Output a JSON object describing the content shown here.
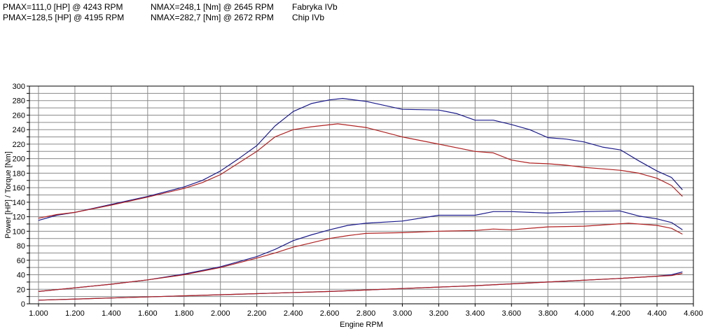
{
  "header": {
    "rows": [
      {
        "pmax": "PMAX=111,0 [HP] @ 4243 RPM",
        "nmax": "NMAX=248,1 [Nm] @ 2645 RPM",
        "name": "Fabryka IVb"
      },
      {
        "pmax": "PMAX=128,5 [HP] @ 4195 RPM",
        "nmax": "NMAX=282,7 [Nm] @ 2672 RPM",
        "name": "Chip IVb"
      }
    ]
  },
  "chart_data": {
    "type": "line",
    "xlabel": "Engine RPM",
    "ylabel": "Power [HP] / Torque [Nm]",
    "xlim": [
      950,
      4600
    ],
    "ylim": [
      0,
      300
    ],
    "x_ticks": [
      1000,
      1200,
      1400,
      1600,
      1800,
      2000,
      2200,
      2400,
      2600,
      2800,
      3000,
      3200,
      3400,
      3600,
      3800,
      4000,
      4200,
      4400,
      4600
    ],
    "x_tick_labels": [
      "1.000",
      "1.200",
      "1.400",
      "1.600",
      "1.800",
      "2.000",
      "2.200",
      "2.400",
      "2.600",
      "2.800",
      "3.000",
      "3.200",
      "3.400",
      "3.600",
      "3.800",
      "4.000",
      "4.200",
      "4.400",
      "4.600"
    ],
    "y_ticks": [
      0,
      10,
      20,
      30,
      40,
      50,
      60,
      70,
      80,
      90,
      100,
      110,
      120,
      130,
      140,
      150,
      160,
      170,
      180,
      190,
      200,
      210,
      220,
      230,
      240,
      250,
      260,
      270,
      280,
      290,
      300
    ],
    "y_tick_labels": [
      "0",
      "",
      "20",
      "",
      "40",
      "",
      "60",
      "",
      "80",
      "",
      "100",
      "",
      "120",
      "",
      "140",
      "",
      "160",
      "",
      "180",
      "",
      "200",
      "",
      "220",
      "",
      "240",
      "",
      "260",
      "",
      "280",
      "",
      "300"
    ],
    "grid": true,
    "series": [
      {
        "color": "#1a1a8c",
        "points": [
          [
            1000,
            115
          ],
          [
            1100,
            122
          ],
          [
            1200,
            126
          ],
          [
            1400,
            137
          ],
          [
            1600,
            148
          ],
          [
            1800,
            161
          ],
          [
            1900,
            170
          ],
          [
            2000,
            183
          ],
          [
            2100,
            200
          ],
          [
            2200,
            218
          ],
          [
            2300,
            245
          ],
          [
            2400,
            265
          ],
          [
            2500,
            276
          ],
          [
            2600,
            281
          ],
          [
            2672,
            283
          ],
          [
            2800,
            279
          ],
          [
            3000,
            268
          ],
          [
            3200,
            267
          ],
          [
            3300,
            262
          ],
          [
            3400,
            253
          ],
          [
            3500,
            253
          ],
          [
            3600,
            247
          ],
          [
            3700,
            240
          ],
          [
            3800,
            229
          ],
          [
            3900,
            227
          ],
          [
            4000,
            223
          ],
          [
            4100,
            216
          ],
          [
            4200,
            212
          ],
          [
            4300,
            197
          ],
          [
            4400,
            183
          ],
          [
            4480,
            174
          ],
          [
            4540,
            157
          ]
        ]
      },
      {
        "color": "#b02020",
        "points": [
          [
            1000,
            118
          ],
          [
            1100,
            123
          ],
          [
            1200,
            126
          ],
          [
            1400,
            136
          ],
          [
            1600,
            147
          ],
          [
            1800,
            159
          ],
          [
            1900,
            167
          ],
          [
            2000,
            178
          ],
          [
            2100,
            194
          ],
          [
            2200,
            210
          ],
          [
            2300,
            230
          ],
          [
            2400,
            240
          ],
          [
            2500,
            244
          ],
          [
            2645,
            248
          ],
          [
            2800,
            243
          ],
          [
            3000,
            230
          ],
          [
            3200,
            220
          ],
          [
            3400,
            210
          ],
          [
            3500,
            208
          ],
          [
            3600,
            198
          ],
          [
            3700,
            194
          ],
          [
            3800,
            193
          ],
          [
            3900,
            191
          ],
          [
            4000,
            188
          ],
          [
            4100,
            186
          ],
          [
            4200,
            184
          ],
          [
            4300,
            180
          ],
          [
            4400,
            173
          ],
          [
            4480,
            163
          ],
          [
            4540,
            148
          ]
        ]
      },
      {
        "color": "#1a1a8c",
        "points": [
          [
            1000,
            17
          ],
          [
            1200,
            22
          ],
          [
            1400,
            27
          ],
          [
            1600,
            33
          ],
          [
            1800,
            41
          ],
          [
            2000,
            51
          ],
          [
            2200,
            65
          ],
          [
            2300,
            75
          ],
          [
            2400,
            87
          ],
          [
            2500,
            95
          ],
          [
            2600,
            102
          ],
          [
            2700,
            108
          ],
          [
            2800,
            111
          ],
          [
            3000,
            114
          ],
          [
            3200,
            122
          ],
          [
            3400,
            122
          ],
          [
            3500,
            127
          ],
          [
            3600,
            127
          ],
          [
            3800,
            125
          ],
          [
            4000,
            127
          ],
          [
            4195,
            128
          ],
          [
            4300,
            121
          ],
          [
            4400,
            117
          ],
          [
            4480,
            112
          ],
          [
            4540,
            102
          ]
        ]
      },
      {
        "color": "#b02020",
        "points": [
          [
            1000,
            17
          ],
          [
            1200,
            22
          ],
          [
            1400,
            27
          ],
          [
            1600,
            33
          ],
          [
            1800,
            40
          ],
          [
            2000,
            50
          ],
          [
            2200,
            63
          ],
          [
            2300,
            70
          ],
          [
            2400,
            78
          ],
          [
            2500,
            84
          ],
          [
            2600,
            90
          ],
          [
            2700,
            94
          ],
          [
            2800,
            97
          ],
          [
            3000,
            98
          ],
          [
            3200,
            100
          ],
          [
            3400,
            101
          ],
          [
            3500,
            103
          ],
          [
            3600,
            102
          ],
          [
            3800,
            106
          ],
          [
            4000,
            107
          ],
          [
            4243,
            111
          ],
          [
            4300,
            110
          ],
          [
            4400,
            108
          ],
          [
            4480,
            104
          ],
          [
            4540,
            96
          ]
        ]
      },
      {
        "color": "#1a1a8c",
        "points": [
          [
            1000,
            5
          ],
          [
            1400,
            8
          ],
          [
            1800,
            11
          ],
          [
            2200,
            14
          ],
          [
            2600,
            17
          ],
          [
            3000,
            21
          ],
          [
            3400,
            25
          ],
          [
            3800,
            30
          ],
          [
            4200,
            35
          ],
          [
            4400,
            38
          ],
          [
            4480,
            40
          ],
          [
            4540,
            44
          ]
        ]
      },
      {
        "color": "#b02020",
        "points": [
          [
            1000,
            5
          ],
          [
            1400,
            8
          ],
          [
            1800,
            11
          ],
          [
            2200,
            14
          ],
          [
            2600,
            17
          ],
          [
            3000,
            21
          ],
          [
            3400,
            25
          ],
          [
            3800,
            30
          ],
          [
            4200,
            35
          ],
          [
            4400,
            38
          ],
          [
            4480,
            39
          ],
          [
            4540,
            42
          ]
        ]
      }
    ]
  }
}
